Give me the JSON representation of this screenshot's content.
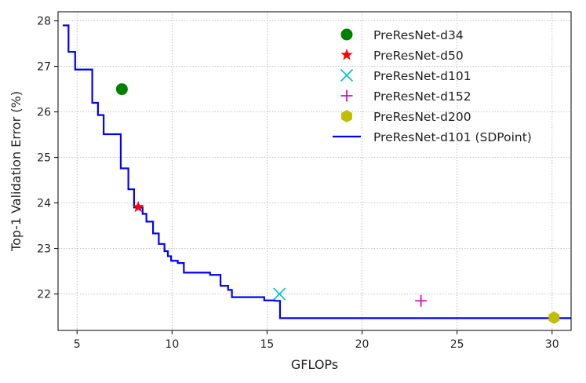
{
  "chart_data": {
    "type": "scatter",
    "xlabel": "GFLOPs",
    "ylabel": "Top-1 Validation Error (%)",
    "xlim": [
      4.0,
      31.0
    ],
    "ylim": [
      21.2,
      28.2
    ],
    "xticks": [
      5,
      10,
      15,
      20,
      25,
      30
    ],
    "yticks": [
      22,
      23,
      24,
      25,
      26,
      27,
      28
    ],
    "grid": true,
    "legend_position": "top-right",
    "series": [
      {
        "name": "PreResNet-d34",
        "marker": "circle",
        "color": "#008000",
        "points": [
          [
            7.36,
            26.5
          ]
        ]
      },
      {
        "name": "PreResNet-d50",
        "marker": "star",
        "color": "#ff0000",
        "points": [
          [
            8.22,
            23.91
          ]
        ]
      },
      {
        "name": "PreResNet-d101",
        "marker": "x",
        "color": "#00bfbf",
        "points": [
          [
            15.65,
            22.0
          ]
        ]
      },
      {
        "name": "PreResNet-d152",
        "marker": "plus",
        "color": "#bf00bf",
        "points": [
          [
            23.1,
            21.85
          ]
        ]
      },
      {
        "name": "PreResNet-d200",
        "marker": "hexagon",
        "color": "#bfbf00",
        "points": [
          [
            30.1,
            21.48
          ]
        ]
      },
      {
        "name": "PreResNet-d101 (SDPoint)",
        "marker": "step-line",
        "color": "#0000ff",
        "points": [
          [
            4.25,
            27.9
          ],
          [
            4.55,
            27.9
          ],
          [
            4.55,
            27.32
          ],
          [
            4.9,
            27.32
          ],
          [
            4.9,
            26.93
          ],
          [
            5.8,
            26.93
          ],
          [
            5.8,
            26.2
          ],
          [
            6.1,
            26.2
          ],
          [
            6.1,
            25.93
          ],
          [
            6.4,
            25.93
          ],
          [
            6.4,
            25.51
          ],
          [
            7.3,
            25.51
          ],
          [
            7.3,
            24.76
          ],
          [
            7.7,
            24.76
          ],
          [
            7.7,
            24.3
          ],
          [
            8.0,
            24.3
          ],
          [
            8.0,
            23.9
          ],
          [
            8.45,
            23.9
          ],
          [
            8.45,
            23.76
          ],
          [
            8.65,
            23.76
          ],
          [
            8.65,
            23.59
          ],
          [
            9.0,
            23.59
          ],
          [
            9.0,
            23.33
          ],
          [
            9.3,
            23.33
          ],
          [
            9.3,
            23.1
          ],
          [
            9.6,
            23.1
          ],
          [
            9.6,
            22.94
          ],
          [
            9.78,
            22.94
          ],
          [
            9.78,
            22.83
          ],
          [
            9.95,
            22.83
          ],
          [
            9.95,
            22.73
          ],
          [
            10.3,
            22.73
          ],
          [
            10.3,
            22.68
          ],
          [
            10.62,
            22.68
          ],
          [
            10.62,
            22.47
          ],
          [
            12.0,
            22.47
          ],
          [
            12.0,
            22.42
          ],
          [
            12.55,
            22.42
          ],
          [
            12.55,
            22.18
          ],
          [
            12.95,
            22.18
          ],
          [
            12.95,
            22.09
          ],
          [
            13.15,
            22.09
          ],
          [
            13.15,
            21.93
          ],
          [
            14.85,
            21.93
          ],
          [
            14.85,
            21.86
          ],
          [
            15.4,
            21.86
          ],
          [
            15.4,
            21.85
          ],
          [
            15.68,
            21.85
          ],
          [
            15.68,
            21.47
          ],
          [
            31.0,
            21.47
          ]
        ]
      }
    ]
  }
}
